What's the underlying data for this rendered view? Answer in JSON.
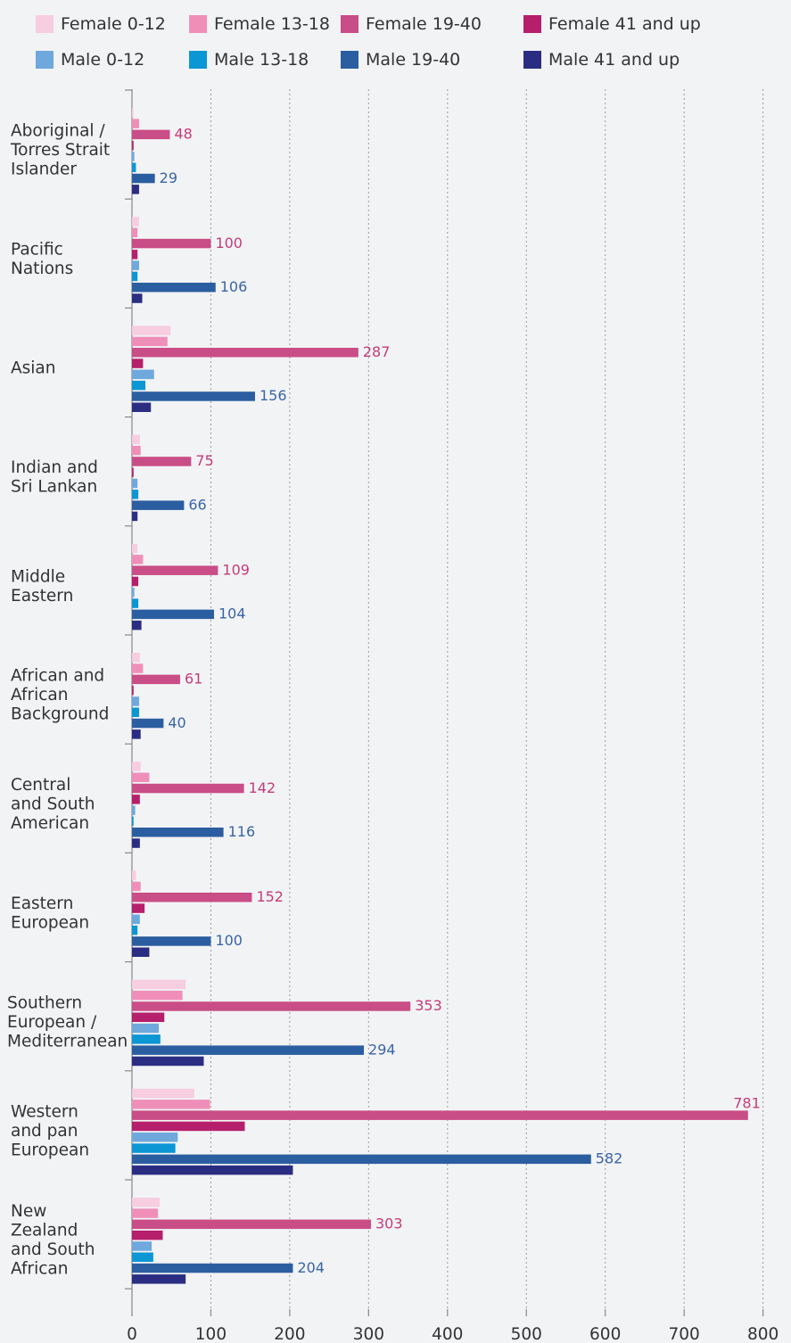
{
  "chart_data": {
    "type": "bar",
    "orientation": "horizontal",
    "grid": true,
    "legend_position": "top",
    "xlim": [
      0,
      800
    ],
    "x_ticks": [
      "0",
      "100",
      "200",
      "300",
      "400",
      "500",
      "600",
      "700",
      "800"
    ],
    "categories": [
      [
        "Aboriginal /",
        "Torres Strait",
        "Islander"
      ],
      [
        "Pacific",
        "Nations"
      ],
      [
        "Asian"
      ],
      [
        "Indian and",
        "Sri Lankan"
      ],
      [
        "Middle",
        "Eastern"
      ],
      [
        "African and",
        "African",
        "Background"
      ],
      [
        "Central",
        "and South",
        "American"
      ],
      [
        "Eastern",
        "European"
      ],
      [
        "Southern",
        "European /",
        "Mediterranean"
      ],
      [
        "Western",
        "and pan",
        "European"
      ],
      [
        "New",
        "Zealand",
        "and South",
        "African"
      ]
    ],
    "series": [
      {
        "name": "Female 0-12",
        "color": "#f7cde0",
        "values": [
          2,
          9,
          49,
          10,
          7,
          10,
          11,
          5,
          68,
          79,
          35
        ]
      },
      {
        "name": "Female 13-18",
        "color": "#ef8fb9",
        "values": [
          9,
          7,
          45,
          11,
          14,
          14,
          22,
          11,
          64,
          99,
          33
        ]
      },
      {
        "name": "Female 19-40",
        "color": "#c94d86",
        "labelColor": "#c43c7a",
        "values": [
          48,
          100,
          287,
          75,
          109,
          61,
          142,
          152,
          353,
          781,
          303
        ],
        "labeled": true
      },
      {
        "name": "Female 41 and up",
        "color": "#b51f6b",
        "values": [
          2,
          7,
          14,
          2,
          8,
          2,
          10,
          16,
          41,
          143,
          39
        ]
      },
      {
        "name": "Male 0-12",
        "color": "#6fa8dc",
        "values": [
          3,
          9,
          28,
          7,
          3,
          9,
          4,
          10,
          34,
          58,
          25
        ]
      },
      {
        "name": "Male 13-18",
        "color": "#0b96d4",
        "values": [
          5,
          7,
          17,
          8,
          8,
          9,
          2,
          7,
          36,
          55,
          27
        ]
      },
      {
        "name": "Male 19-40",
        "color": "#2b5ea0",
        "labelColor": "#3a64a6",
        "values": [
          29,
          106,
          156,
          66,
          104,
          40,
          116,
          100,
          294,
          582,
          204
        ],
        "labeled": true
      },
      {
        "name": "Male 41 and up",
        "color": "#2a2d82",
        "values": [
          9,
          13,
          24,
          7,
          12,
          11,
          10,
          22,
          91,
          204,
          68
        ]
      }
    ]
  }
}
